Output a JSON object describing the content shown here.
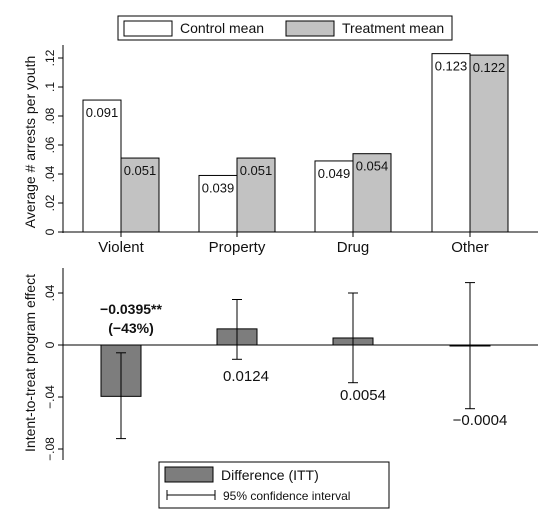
{
  "chart_data": [
    {
      "type": "bar",
      "categories": [
        "Violent",
        "Property",
        "Drug",
        "Other"
      ],
      "ylabel": "Average # arrests per youth",
      "yticks": [
        ".12",
        ".1",
        ".08",
        ".06",
        ".04",
        ".02",
        "0"
      ],
      "ylim": [
        0,
        0.13
      ],
      "series": [
        {
          "name": "Control mean",
          "values": [
            0.091,
            0.039,
            0.049,
            0.123
          ],
          "labels": [
            "0.091",
            "0.039",
            "0.049",
            "0.123"
          ],
          "color": "#ffffff"
        },
        {
          "name": "Treatment mean",
          "values": [
            0.051,
            0.051,
            0.054,
            0.122
          ],
          "labels": [
            "0.051",
            "0.051",
            "0.054",
            "0.122"
          ],
          "color": "#c2c2c2"
        }
      ],
      "legend": "top",
      "grid": false
    },
    {
      "type": "bar",
      "categories": [
        "Violent",
        "Property",
        "Drug",
        "Other"
      ],
      "ylabel": "Intent-to-treat program effect",
      "yticks": [
        "0.04",
        "0",
        "-0.04",
        "-0.08"
      ],
      "ylim": [
        -0.088,
        0.052
      ],
      "series": [
        {
          "name": "Difference (ITT)",
          "values": [
            -0.0395,
            0.0124,
            0.0054,
            -0.0004
          ],
          "labels": [
            "−0.0395**",
            "0.0124",
            "0.0054",
            "−0.0004"
          ],
          "color": "#7d7d7d"
        }
      ],
      "ci_low": [
        -0.072,
        -0.011,
        -0.029,
        -0.049
      ],
      "ci_high": [
        -0.006,
        0.035,
        0.04,
        0.048
      ],
      "violent_pct_label": "(−43%)",
      "ci_legend_label": "95% confidence interval",
      "legend": "bottom",
      "grid": false
    }
  ]
}
